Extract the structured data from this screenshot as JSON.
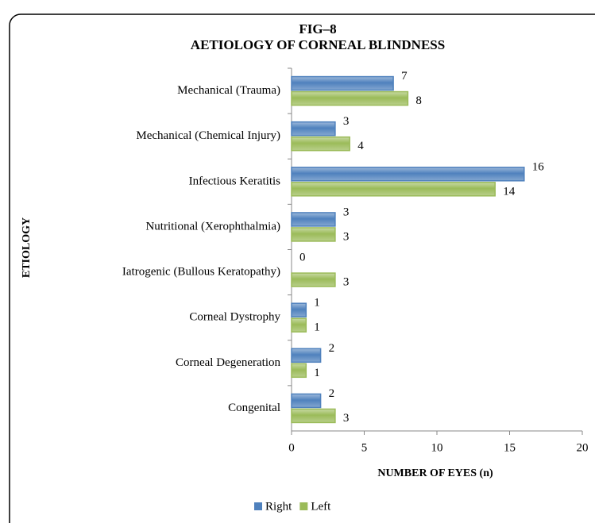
{
  "chart_data": {
    "type": "bar",
    "orientation": "horizontal",
    "title": "FIG–8",
    "subtitle": "AETIOLOGY OF CORNEAL BLINDNESS",
    "x_label": "NUMBER OF EYES (n)",
    "y_label": "ETIOLOGY",
    "categories": [
      "Mechanical (Trauma)",
      "Mechanical (Chemical Injury)",
      "Infectious Keratitis",
      "Nutritional (Xerophthalmia)",
      "Iatrogenic (Bullous Keratopathy)",
      "Corneal Dystrophy",
      "Corneal Degeneration",
      "Congenital"
    ],
    "series": [
      {
        "name": "Right",
        "color": "#4f81bd",
        "values": [
          7,
          3,
          16,
          3,
          0,
          1,
          2,
          2
        ]
      },
      {
        "name": "Left",
        "color": "#9bbb59",
        "values": [
          8,
          4,
          14,
          3,
          3,
          1,
          1,
          3
        ]
      }
    ],
    "xlim": [
      0,
      20
    ],
    "xticks": [
      0,
      5,
      10,
      15,
      20
    ],
    "legend": "bottom"
  }
}
